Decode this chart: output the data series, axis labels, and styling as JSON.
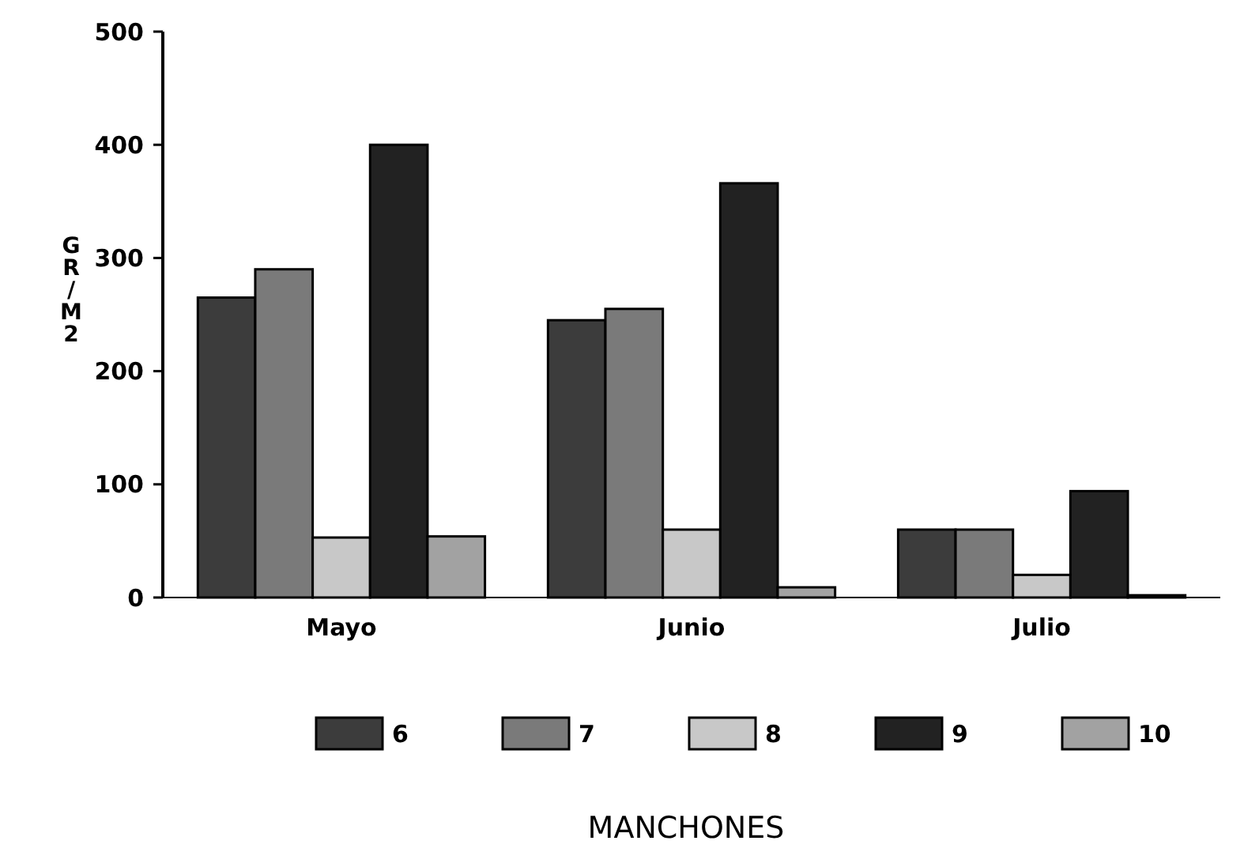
{
  "chart_data": {
    "type": "bar",
    "categories": [
      "Mayo",
      "Junio",
      "Julio"
    ],
    "series": [
      {
        "name": "6",
        "color": "#3c3c3c",
        "values": [
          265,
          245,
          60
        ]
      },
      {
        "name": "7",
        "color": "#7a7a7a",
        "values": [
          290,
          255,
          60
        ]
      },
      {
        "name": "8",
        "color": "#c8c8c8",
        "values": [
          53,
          60,
          20
        ]
      },
      {
        "name": "9",
        "color": "#222222",
        "values": [
          400,
          366,
          94
        ]
      },
      {
        "name": "10",
        "color": "#a2a2a2",
        "values": [
          54,
          9,
          2
        ]
      }
    ],
    "ylim": [
      0,
      500
    ],
    "yticks": [
      0,
      100,
      200,
      300,
      400,
      500
    ],
    "ylabel": "GR/M2",
    "legend_title": "MANCHONES",
    "legend": "bottom",
    "grid": false
  }
}
